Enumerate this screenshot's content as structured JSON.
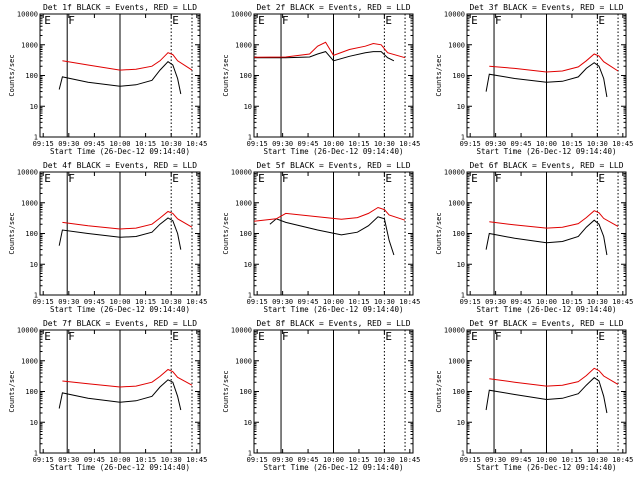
{
  "colors": {
    "events": "#000000",
    "lld": "#e00000",
    "axes": "#000000",
    "background": "#ffffff"
  },
  "chart_data": [
    {
      "type": "line",
      "title": "Det 1f BLACK = Events, RED = LLD",
      "ylabel": "Counts/sec",
      "xlabel": "Start Time (26-Dec-12 09:14:40)",
      "x_ticks": [
        "09:15",
        "09:30",
        "09:45",
        "10:00",
        "10:15",
        "10:30",
        "10:45"
      ],
      "y_ticks": [
        "1",
        "10",
        "100",
        "1000",
        "10000"
      ],
      "markers": [
        "E",
        "F",
        "E"
      ],
      "ylim": [
        1,
        10000
      ],
      "scale": "log",
      "series": [
        {
          "kind": "events",
          "x": [
            0.12,
            0.14,
            0.3,
            0.5,
            0.6,
            0.7,
            0.75,
            0.8,
            0.83,
            0.86,
            0.88
          ],
          "values": [
            35,
            90,
            60,
            45,
            50,
            70,
            150,
            280,
            220,
            80,
            25
          ]
        },
        {
          "kind": "lld",
          "x": [
            0.14,
            0.3,
            0.5,
            0.6,
            0.7,
            0.75,
            0.8,
            0.83,
            0.86,
            0.95
          ],
          "values": [
            300,
            220,
            150,
            160,
            200,
            300,
            550,
            480,
            300,
            150
          ]
        }
      ]
    },
    {
      "type": "line",
      "title": "Det 2f BLACK = Events, RED = LLD",
      "ylabel": "Counts/sec",
      "xlabel": "Start Time (26-Dec-12 09:14:40)",
      "x_ticks": [
        "09:15",
        "09:30",
        "09:45",
        "10:00",
        "10:15",
        "10:30",
        "10:45"
      ],
      "y_ticks": [
        "1",
        "10",
        "100",
        "1000",
        "10000"
      ],
      "markers": [
        "E",
        "F",
        "E"
      ],
      "ylim": [
        1,
        10000
      ],
      "scale": "log",
      "series": [
        {
          "kind": "events",
          "x": [
            0.0,
            0.2,
            0.35,
            0.4,
            0.45,
            0.5,
            0.6,
            0.7,
            0.75,
            0.8,
            0.84,
            0.88
          ],
          "values": [
            380,
            380,
            400,
            500,
            600,
            300,
            420,
            550,
            600,
            600,
            380,
            300
          ]
        },
        {
          "kind": "lld",
          "x": [
            0.0,
            0.2,
            0.35,
            0.4,
            0.45,
            0.5,
            0.6,
            0.7,
            0.75,
            0.8,
            0.84,
            0.95
          ],
          "values": [
            390,
            400,
            500,
            900,
            1200,
            450,
            700,
            900,
            1100,
            1000,
            550,
            380
          ]
        }
      ]
    },
    {
      "type": "line",
      "title": "Det 3f BLACK = Events, RED = LLD",
      "ylabel": "Counts/sec",
      "xlabel": "Start Time (26-Dec-12 09:14:40)",
      "x_ticks": [
        "09:15",
        "09:30",
        "09:45",
        "10:00",
        "10:15",
        "10:30",
        "10:45"
      ],
      "y_ticks": [
        "1",
        "10",
        "100",
        "1000",
        "10000"
      ],
      "markers": [
        "E",
        "F",
        "E"
      ],
      "ylim": [
        1,
        10000
      ],
      "scale": "log",
      "series": [
        {
          "kind": "events",
          "x": [
            0.12,
            0.14,
            0.3,
            0.5,
            0.6,
            0.7,
            0.75,
            0.8,
            0.83,
            0.86,
            0.88
          ],
          "values": [
            30,
            110,
            80,
            60,
            65,
            90,
            170,
            260,
            200,
            80,
            20
          ]
        },
        {
          "kind": "lld",
          "x": [
            0.14,
            0.3,
            0.5,
            0.6,
            0.7,
            0.75,
            0.8,
            0.83,
            0.86,
            0.95
          ],
          "values": [
            200,
            170,
            130,
            140,
            190,
            300,
            500,
            430,
            280,
            140
          ]
        }
      ]
    },
    {
      "type": "line",
      "title": "Det 4f BLACK = Events, RED = LLD",
      "ylabel": "Counts/sec",
      "xlabel": "Start Time (26-Dec-12 09:14:40)",
      "x_ticks": [
        "09:15",
        "09:30",
        "09:45",
        "10:00",
        "10:15",
        "10:30",
        "10:45"
      ],
      "y_ticks": [
        "1",
        "10",
        "100",
        "1000",
        "10000"
      ],
      "markers": [
        "E",
        "F",
        "E"
      ],
      "ylim": [
        1,
        10000
      ],
      "scale": "log",
      "series": [
        {
          "kind": "events",
          "x": [
            0.12,
            0.14,
            0.3,
            0.5,
            0.6,
            0.7,
            0.75,
            0.8,
            0.83,
            0.86,
            0.88
          ],
          "values": [
            40,
            130,
            100,
            75,
            80,
            110,
            200,
            320,
            260,
            100,
            30
          ]
        },
        {
          "kind": "lld",
          "x": [
            0.14,
            0.3,
            0.5,
            0.6,
            0.7,
            0.75,
            0.8,
            0.83,
            0.86,
            0.95
          ],
          "values": [
            230,
            180,
            140,
            150,
            200,
            320,
            520,
            450,
            300,
            160
          ]
        }
      ]
    },
    {
      "type": "line",
      "title": "Det 5f BLACK = Events, RED = LLD",
      "ylabel": "Counts/sec",
      "xlabel": "Start Time (26-Dec-12 09:14:40)",
      "x_ticks": [
        "09:15",
        "09:30",
        "09:45",
        "10:00",
        "10:15",
        "10:30",
        "10:45"
      ],
      "y_ticks": [
        "1",
        "10",
        "100",
        "1000",
        "10000"
      ],
      "markers": [
        "E",
        "F",
        "E"
      ],
      "ylim": [
        1,
        10000
      ],
      "scale": "log",
      "series": [
        {
          "kind": "events",
          "x": [
            0.1,
            0.14,
            0.2,
            0.4,
            0.55,
            0.65,
            0.72,
            0.78,
            0.82,
            0.85,
            0.88
          ],
          "values": [
            200,
            300,
            230,
            130,
            90,
            110,
            180,
            350,
            300,
            60,
            20
          ]
        },
        {
          "kind": "lld",
          "x": [
            0.0,
            0.14,
            0.2,
            0.4,
            0.55,
            0.65,
            0.72,
            0.78,
            0.82,
            0.85,
            0.95
          ],
          "values": [
            250,
            300,
            450,
            350,
            290,
            330,
            450,
            700,
            600,
            400,
            270
          ]
        }
      ]
    },
    {
      "type": "line",
      "title": "Det 6f BLACK = Events, RED = LLD",
      "ylabel": "Counts/sec",
      "xlabel": "Start Time (26-Dec-12 09:14:40)",
      "x_ticks": [
        "09:15",
        "09:30",
        "09:45",
        "10:00",
        "10:15",
        "10:30",
        "10:45"
      ],
      "y_ticks": [
        "1",
        "10",
        "100",
        "1000",
        "10000"
      ],
      "markers": [
        "E",
        "F",
        "E"
      ],
      "ylim": [
        1,
        10000
      ],
      "scale": "log",
      "series": [
        {
          "kind": "events",
          "x": [
            0.12,
            0.14,
            0.3,
            0.5,
            0.6,
            0.7,
            0.75,
            0.8,
            0.83,
            0.86,
            0.88
          ],
          "values": [
            30,
            100,
            70,
            50,
            55,
            80,
            160,
            270,
            200,
            80,
            20
          ]
        },
        {
          "kind": "lld",
          "x": [
            0.14,
            0.3,
            0.5,
            0.6,
            0.7,
            0.75,
            0.8,
            0.83,
            0.86,
            0.95
          ],
          "values": [
            240,
            190,
            150,
            160,
            210,
            330,
            550,
            470,
            310,
            170
          ]
        }
      ]
    },
    {
      "type": "line",
      "title": "Det 7f BLACK = Events, RED = LLD",
      "ylabel": "Counts/sec",
      "xlabel": "Start Time (26-Dec-12 09:14:40)",
      "x_ticks": [
        "09:15",
        "09:30",
        "09:45",
        "10:00",
        "10:15",
        "10:30",
        "10:45"
      ],
      "y_ticks": [
        "1",
        "10",
        "100",
        "1000",
        "10000"
      ],
      "markers": [
        "E",
        "F",
        "E"
      ],
      "ylim": [
        1,
        10000
      ],
      "scale": "log",
      "series": [
        {
          "kind": "events",
          "x": [
            0.12,
            0.14,
            0.3,
            0.5,
            0.6,
            0.7,
            0.75,
            0.8,
            0.83,
            0.86,
            0.88
          ],
          "values": [
            28,
            90,
            60,
            45,
            50,
            70,
            140,
            240,
            200,
            70,
            25
          ]
        },
        {
          "kind": "lld",
          "x": [
            0.14,
            0.3,
            0.5,
            0.6,
            0.7,
            0.75,
            0.8,
            0.83,
            0.86,
            0.95
          ],
          "values": [
            220,
            180,
            140,
            150,
            200,
            310,
            520,
            440,
            290,
            160
          ]
        }
      ]
    },
    {
      "type": "line",
      "title": "Det 8f BLACK = Events, RED = LLD",
      "ylabel": "Counts/sec",
      "xlabel": "Start Time (26-Dec-12 09:14:40)",
      "x_ticks": [
        "09:15",
        "09:30",
        "09:45",
        "10:00",
        "10:15",
        "10:30",
        "10:45"
      ],
      "y_ticks": [
        "1",
        "10",
        "100",
        "1000",
        "10000"
      ],
      "markers": [
        "E",
        "F",
        "E"
      ],
      "ylim": [
        1,
        10000
      ],
      "scale": "log",
      "series": []
    },
    {
      "type": "line",
      "title": "Det 9f BLACK = Events, RED = LLD",
      "ylabel": "Counts/sec",
      "xlabel": "Start Time (26-Dec-12 09:14:40)",
      "x_ticks": [
        "09:15",
        "09:30",
        "09:45",
        "10:00",
        "10:15",
        "10:30",
        "10:45"
      ],
      "y_ticks": [
        "1",
        "10",
        "100",
        "1000",
        "10000"
      ],
      "markers": [
        "E",
        "F",
        "E"
      ],
      "ylim": [
        1,
        10000
      ],
      "scale": "log",
      "series": [
        {
          "kind": "events",
          "x": [
            0.12,
            0.14,
            0.3,
            0.5,
            0.6,
            0.7,
            0.75,
            0.8,
            0.83,
            0.86,
            0.88
          ],
          "values": [
            25,
            110,
            80,
            55,
            60,
            85,
            160,
            280,
            220,
            70,
            20
          ]
        },
        {
          "kind": "lld",
          "x": [
            0.14,
            0.3,
            0.5,
            0.6,
            0.7,
            0.75,
            0.8,
            0.83,
            0.86,
            0.95
          ],
          "values": [
            260,
            200,
            150,
            160,
            210,
            330,
            570,
            480,
            320,
            170
          ]
        }
      ]
    }
  ]
}
